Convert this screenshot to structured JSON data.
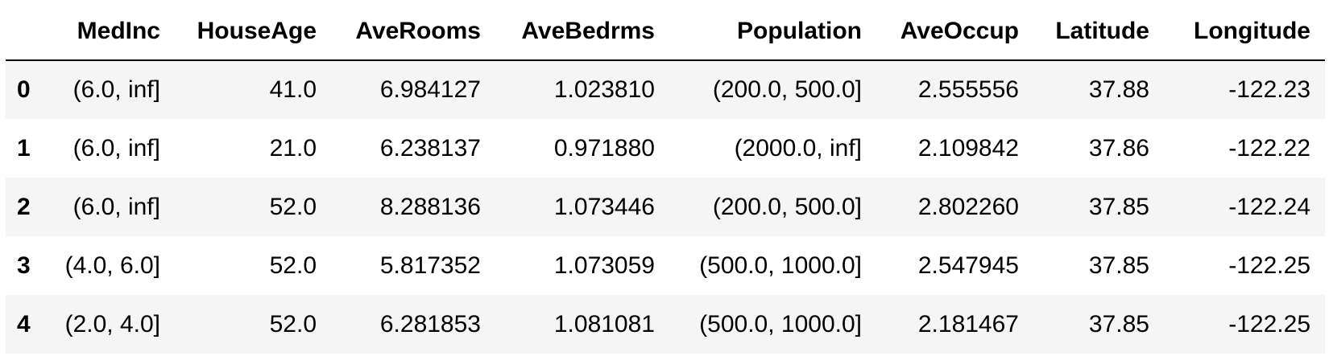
{
  "table": {
    "columns": [
      "MedInc",
      "HouseAge",
      "AveRooms",
      "AveBedrms",
      "Population",
      "AveOccup",
      "Latitude",
      "Longitude"
    ],
    "rows": [
      {
        "index": "0",
        "cells": [
          "(6.0, inf]",
          "41.0",
          "6.984127",
          "1.023810",
          "(200.0, 500.0]",
          "2.555556",
          "37.88",
          "-122.23"
        ]
      },
      {
        "index": "1",
        "cells": [
          "(6.0, inf]",
          "21.0",
          "6.238137",
          "0.971880",
          "(2000.0, inf]",
          "2.109842",
          "37.86",
          "-122.22"
        ]
      },
      {
        "index": "2",
        "cells": [
          "(6.0, inf]",
          "52.0",
          "8.288136",
          "1.073446",
          "(200.0, 500.0]",
          "2.802260",
          "37.85",
          "-122.24"
        ]
      },
      {
        "index": "3",
        "cells": [
          "(4.0, 6.0]",
          "52.0",
          "5.817352",
          "1.073059",
          "(500.0, 1000.0]",
          "2.547945",
          "37.85",
          "-122.25"
        ]
      },
      {
        "index": "4",
        "cells": [
          "(2.0, 4.0]",
          "52.0",
          "6.281853",
          "1.081081",
          "(500.0, 1000.0]",
          "2.181467",
          "37.85",
          "-122.25"
        ]
      }
    ]
  },
  "colors": {
    "stripe": "#f5f5f5",
    "header_rule": "#000000",
    "text": "#000000"
  }
}
